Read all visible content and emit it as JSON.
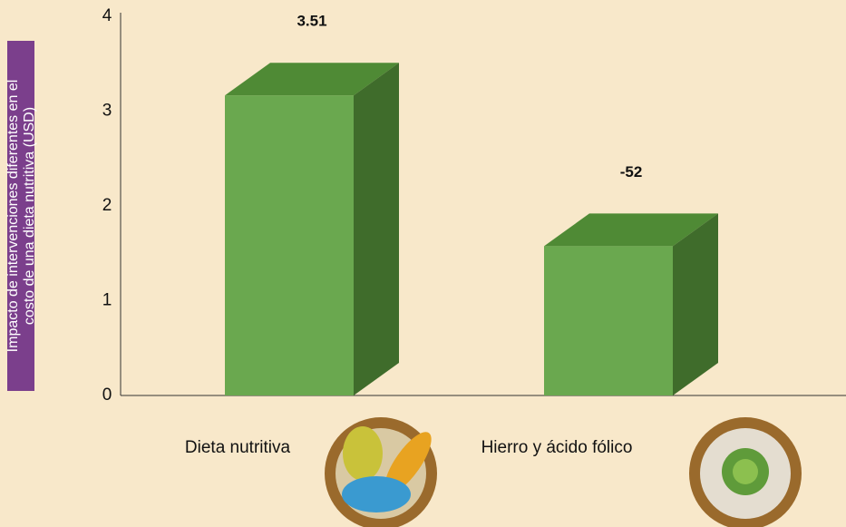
{
  "chart_data": {
    "type": "bar3d",
    "ylabel": [
      "Impacto de intervenciones diferentes en el",
      "costo de una dieta nutritiva (USD)"
    ],
    "categories": [
      "Dieta nutritiva",
      "Hierro y ácido fólico"
    ],
    "values": [
      3.51,
      1.92
    ],
    "annotations": [
      "3.51",
      "-52"
    ],
    "color": "#6aa84f",
    "ylim": [
      0,
      4
    ],
    "yticks": [
      0,
      1,
      2,
      3,
      4
    ]
  }
}
